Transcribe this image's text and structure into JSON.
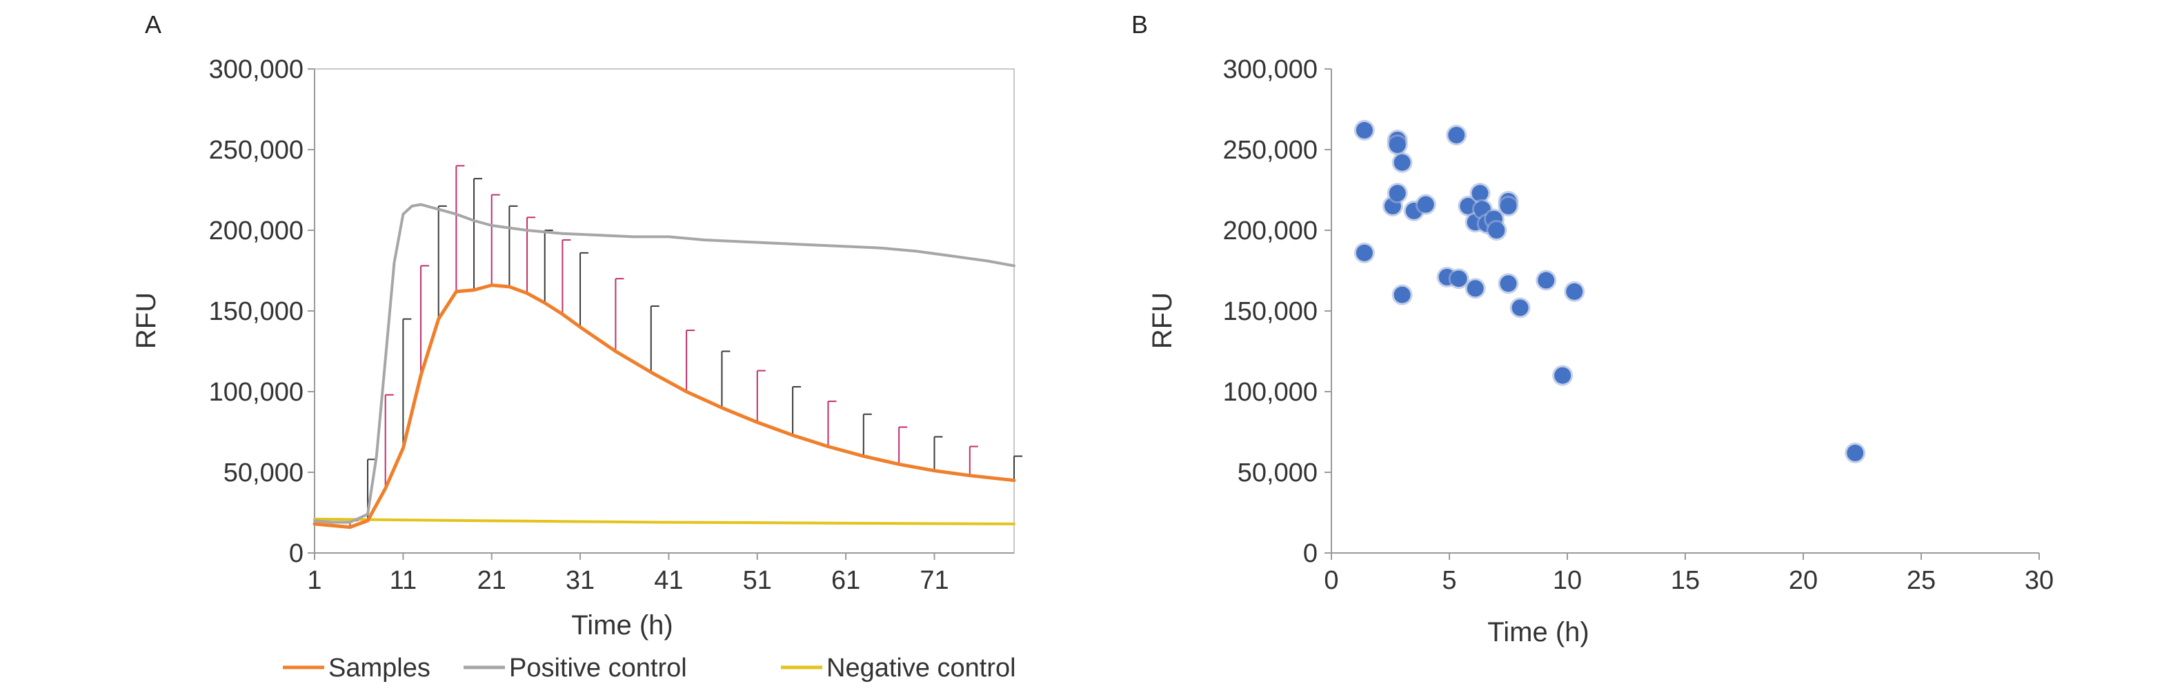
{
  "chart_data": [
    {
      "panel_label": "A",
      "type": "line",
      "xlabel": "Time (h)",
      "ylabel": "RFU",
      "xlim": [
        1,
        80
      ],
      "ylim": [
        0,
        300000
      ],
      "x_tick_values": [
        1,
        11,
        21,
        31,
        41,
        51,
        61,
        71
      ],
      "x_tick_labels": [
        "1",
        "11",
        "21",
        "31",
        "41",
        "51",
        "61",
        "71"
      ],
      "y_tick_values": [
        0,
        50000,
        100000,
        150000,
        200000,
        250000,
        300000
      ],
      "y_tick_labels": [
        "0",
        "50,000",
        "100,000",
        "150,000",
        "200,000",
        "250,000",
        "300,000"
      ],
      "grid": false,
      "legend_position": "bottom",
      "series": [
        {
          "name": "Samples",
          "color": "#F07F2B",
          "x": [
            1,
            3,
            5,
            7,
            9,
            11,
            13,
            15,
            17,
            19,
            21,
            23,
            25,
            27,
            29,
            31,
            35,
            39,
            43,
            47,
            51,
            55,
            59,
            63,
            67,
            71,
            75,
            80
          ],
          "y": [
            18000,
            17000,
            16000,
            20000,
            40000,
            65000,
            110000,
            145000,
            162000,
            163000,
            166000,
            165000,
            161000,
            155000,
            148000,
            140000,
            125000,
            112000,
            100000,
            90000,
            81000,
            73000,
            66000,
            60000,
            55000,
            51000,
            48000,
            45000
          ],
          "error_upper": [
            null,
            null,
            20000,
            58000,
            98000,
            145000,
            178000,
            215000,
            240000,
            232000,
            222000,
            215000,
            208000,
            200000,
            194000,
            186000,
            170000,
            153000,
            138000,
            125000,
            113000,
            103000,
            94000,
            86000,
            78000,
            72000,
            66000,
            60000
          ]
        },
        {
          "name": "Positive control",
          "color": "#A6A6A6",
          "x": [
            1,
            3,
            5,
            7,
            8,
            9,
            10,
            11,
            12,
            13,
            15,
            17,
            19,
            21,
            25,
            29,
            33,
            37,
            41,
            45,
            49,
            53,
            57,
            61,
            65,
            69,
            73,
            77,
            80
          ],
          "y": [
            20000,
            19000,
            19000,
            24000,
            60000,
            120000,
            180000,
            210000,
            215000,
            216000,
            213000,
            210000,
            206000,
            203000,
            200000,
            198000,
            197000,
            196000,
            196000,
            194000,
            193000,
            192000,
            191000,
            190000,
            189000,
            187000,
            184000,
            181000,
            178000
          ]
        },
        {
          "name": "Negative control",
          "color": "#E3C31C",
          "x": [
            1,
            10,
            20,
            30,
            40,
            50,
            60,
            70,
            80
          ],
          "y": [
            21000,
            20500,
            20000,
            19500,
            19000,
            18800,
            18500,
            18200,
            18000
          ]
        }
      ]
    },
    {
      "panel_label": "B",
      "type": "scatter",
      "xlabel": "Time (h)",
      "ylabel": "RFU",
      "xlim": [
        0,
        30
      ],
      "ylim": [
        0,
        300000
      ],
      "x_tick_values": [
        0,
        5,
        10,
        15,
        20,
        25,
        30
      ],
      "x_tick_labels": [
        "0",
        "5",
        "10",
        "15",
        "20",
        "25",
        "30"
      ],
      "y_tick_values": [
        0,
        50000,
        100000,
        150000,
        200000,
        250000,
        300000
      ],
      "y_tick_labels": [
        "0",
        "50,000",
        "100,000",
        "150,000",
        "200,000",
        "250,000",
        "300,000"
      ],
      "grid": false,
      "point_color": "#4472C4",
      "points": [
        [
          1.4,
          262000
        ],
        [
          1.4,
          186000
        ],
        [
          2.6,
          215000
        ],
        [
          2.8,
          256000
        ],
        [
          2.8,
          253000
        ],
        [
          2.8,
          223000
        ],
        [
          3.0,
          242000
        ],
        [
          3.0,
          160000
        ],
        [
          3.5,
          212000
        ],
        [
          4.0,
          216000
        ],
        [
          4.9,
          171000
        ],
        [
          5.3,
          259000
        ],
        [
          5.4,
          170000
        ],
        [
          5.8,
          215000
        ],
        [
          6.1,
          205000
        ],
        [
          6.1,
          164000
        ],
        [
          6.3,
          223000
        ],
        [
          6.4,
          213000
        ],
        [
          6.6,
          204000
        ],
        [
          6.9,
          207000
        ],
        [
          7.0,
          200000
        ],
        [
          7.5,
          218000
        ],
        [
          7.5,
          215000
        ],
        [
          7.5,
          167000
        ],
        [
          8.0,
          152000
        ],
        [
          9.1,
          169000
        ],
        [
          9.8,
          110000
        ],
        [
          10.3,
          162000
        ],
        [
          22.2,
          62000
        ]
      ]
    }
  ]
}
